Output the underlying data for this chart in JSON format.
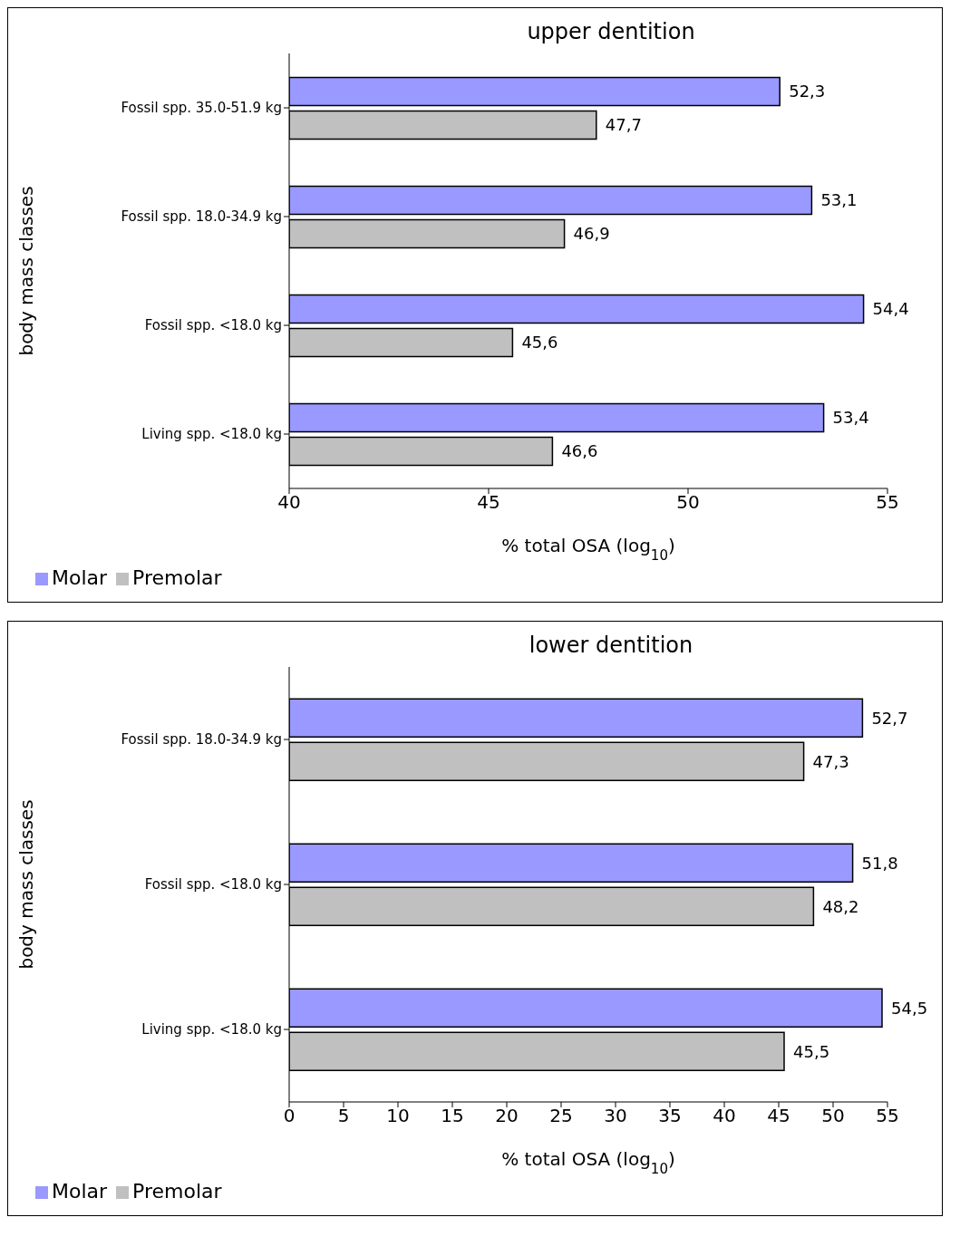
{
  "chart_data": [
    {
      "type": "bar",
      "orientation": "horizontal",
      "title": "upper dentition",
      "xlabel": "% total OSA (log$_{10}$)",
      "ylabel": "body mass classes",
      "categories": [
        "Fossil spp. 35.0-51.9 kg",
        "Fossil spp. 18.0-34.9 kg",
        "Fossil spp. <18.0 kg",
        "Living spp. <18.0 kg"
      ],
      "series": [
        {
          "name": "Molar",
          "color": "#9999ff",
          "values": [
            52.3,
            53.1,
            54.4,
            53.4
          ],
          "value_labels": [
            "52,3",
            "53,1",
            "54,4",
            "53,4"
          ]
        },
        {
          "name": "Premolar",
          "color": "#c0c0c0",
          "values": [
            47.7,
            46.9,
            45.6,
            46.6
          ],
          "value_labels": [
            "47,7",
            "46,9",
            "45,6",
            "46,6"
          ]
        }
      ],
      "xlim": [
        40,
        55
      ],
      "xticks": [
        40,
        45,
        50,
        55
      ],
      "grid": false,
      "legend": "bottom left"
    },
    {
      "type": "bar",
      "orientation": "horizontal",
      "title": "lower dentition",
      "xlabel": "% total OSA (log$_{10}$)",
      "ylabel": "body mass classes",
      "categories": [
        "Fossil spp. 18.0-34.9 kg",
        "Fossil spp. <18.0 kg",
        "Living spp. <18.0 kg"
      ],
      "series": [
        {
          "name": "Molar",
          "color": "#9999ff",
          "values": [
            52.7,
            51.8,
            54.5
          ],
          "value_labels": [
            "52,7",
            "51,8",
            "54,5"
          ]
        },
        {
          "name": "Premolar",
          "color": "#c0c0c0",
          "values": [
            47.3,
            48.2,
            45.5
          ],
          "value_labels": [
            "47,3",
            "48,2",
            "45,5"
          ]
        }
      ],
      "xlim": [
        0,
        55
      ],
      "xticks": [
        0,
        5,
        10,
        15,
        20,
        25,
        30,
        35,
        40,
        45,
        50,
        55
      ],
      "grid": false,
      "legend": "bottom left"
    }
  ]
}
